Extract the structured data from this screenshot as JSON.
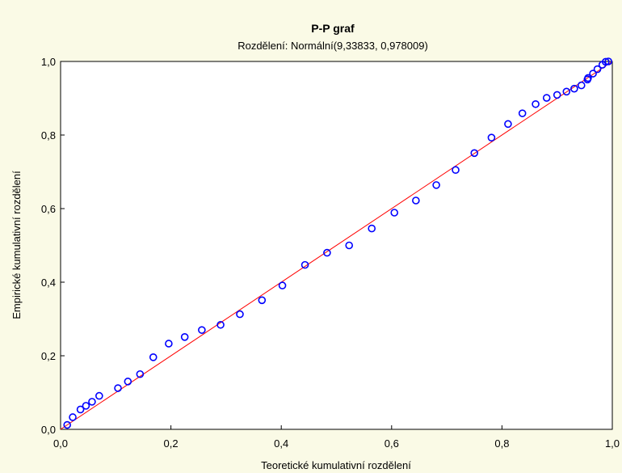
{
  "chart_data": {
    "type": "scatter",
    "title": "P-P graf",
    "subtitle": "Rozdělení: Normální(9,33833, 0,978009)",
    "xlabel": "Teoretické kumulativní rozdělení",
    "ylabel": "Empirické kumulativní rozdělení",
    "xlim": [
      0,
      1
    ],
    "ylim": [
      0,
      1
    ],
    "x_ticks": [
      "0,0",
      "0,2",
      "0,4",
      "0,6",
      "0,8",
      "1,0"
    ],
    "y_ticks": [
      "0,0",
      "0,2",
      "0,4",
      "0,6",
      "0,8",
      "1,0"
    ],
    "grid": false,
    "reference_line": {
      "from": [
        0,
        0
      ],
      "to": [
        1,
        1
      ],
      "color": "#ff0000"
    },
    "marker_color": "#0000ff",
    "points": [
      [
        0.012,
        0.012
      ],
      [
        0.022,
        0.033
      ],
      [
        0.036,
        0.054
      ],
      [
        0.046,
        0.064
      ],
      [
        0.057,
        0.075
      ],
      [
        0.07,
        0.091
      ],
      [
        0.104,
        0.112
      ],
      [
        0.122,
        0.13
      ],
      [
        0.144,
        0.15
      ],
      [
        0.168,
        0.196
      ],
      [
        0.196,
        0.233
      ],
      [
        0.225,
        0.251
      ],
      [
        0.256,
        0.27
      ],
      [
        0.29,
        0.284
      ],
      [
        0.325,
        0.313
      ],
      [
        0.365,
        0.351
      ],
      [
        0.402,
        0.391
      ],
      [
        0.443,
        0.447
      ],
      [
        0.483,
        0.48
      ],
      [
        0.523,
        0.5
      ],
      [
        0.564,
        0.546
      ],
      [
        0.605,
        0.589
      ],
      [
        0.644,
        0.622
      ],
      [
        0.681,
        0.664
      ],
      [
        0.716,
        0.705
      ],
      [
        0.75,
        0.751
      ],
      [
        0.781,
        0.793
      ],
      [
        0.811,
        0.83
      ],
      [
        0.837,
        0.859
      ],
      [
        0.861,
        0.884
      ],
      [
        0.881,
        0.901
      ],
      [
        0.9,
        0.909
      ],
      [
        0.917,
        0.918
      ],
      [
        0.931,
        0.926
      ],
      [
        0.944,
        0.935
      ],
      [
        0.955,
        0.951
      ],
      [
        0.956,
        0.955
      ],
      [
        0.965,
        0.967
      ],
      [
        0.973,
        0.979
      ],
      [
        0.982,
        0.991
      ],
      [
        0.988,
        0.999
      ],
      [
        0.993,
        1.0
      ]
    ]
  }
}
